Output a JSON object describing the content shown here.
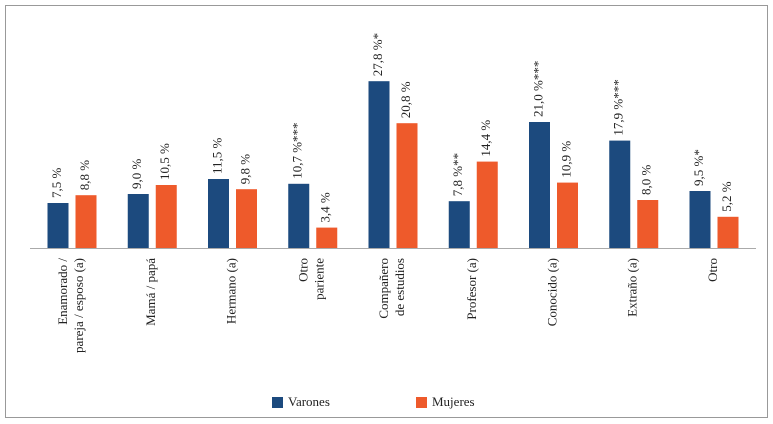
{
  "chart_data": {
    "type": "bar",
    "categories": [
      [
        "Enamorado /",
        "pareja / esposo (a)"
      ],
      [
        "Mamá / papá"
      ],
      [
        "Hermano (a)"
      ],
      [
        "Otro",
        "pariente"
      ],
      [
        "Compañero",
        "de estudios"
      ],
      [
        "Profesor (a)"
      ],
      [
        "Conocido (a)"
      ],
      [
        "Extraño (a)"
      ],
      [
        "Otro"
      ]
    ],
    "series": [
      {
        "name": "Varones",
        "color": "#1c4a7e",
        "values": [
          7.5,
          9.0,
          11.5,
          10.7,
          27.8,
          7.8,
          21.0,
          17.9,
          9.5
        ],
        "value_labels": [
          "7,5 %",
          "9,0 %",
          "11,5 %",
          "10,7 %***",
          "27,8 %*",
          "7,8 %**",
          "21,0 %***",
          "17,9 %***",
          "9,5 %*"
        ]
      },
      {
        "name": "Mujeres",
        "color": "#ee5a2b",
        "values": [
          8.8,
          10.5,
          9.8,
          3.4,
          20.8,
          14.4,
          10.9,
          8.0,
          5.2
        ],
        "value_labels": [
          "8,8 %",
          "10,5 %",
          "9,8 %",
          "3,4 %",
          "20,8 %",
          "14,4 %",
          "10,9 %",
          "8,0 %",
          "5,2 %"
        ]
      }
    ]
  }
}
